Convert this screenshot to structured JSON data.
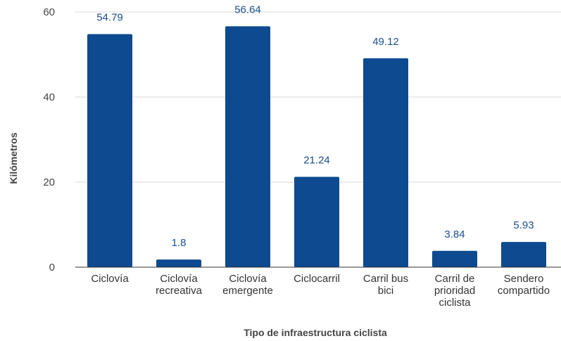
{
  "chart_data": {
    "type": "bar",
    "categories": [
      [
        "Ciclovía"
      ],
      [
        "Ciclovía",
        "recreativa"
      ],
      [
        "Ciclovía",
        "emergente"
      ],
      [
        "Ciclocarril"
      ],
      [
        "Carril bus",
        "bici"
      ],
      [
        "Carril de",
        "prioridad",
        "ciclista"
      ],
      [
        "Sendero",
        "compartido"
      ]
    ],
    "values": [
      54.79,
      1.8,
      56.64,
      21.24,
      49.12,
      3.84,
      5.93
    ],
    "value_labels": [
      "54.79",
      "1.8",
      "56.64",
      "21.24",
      "49.12",
      "3.84",
      "5.93"
    ],
    "title": "",
    "xlabel": "Tipo de infraestructura ciclista",
    "ylabel": "Kilómetros",
    "ylim": [
      0,
      60
    ],
    "yticks": [
      0,
      20,
      40,
      60
    ],
    "grid": true,
    "colors": {
      "bar": "#0d4a8f",
      "label": "#1a4f8f"
    }
  }
}
